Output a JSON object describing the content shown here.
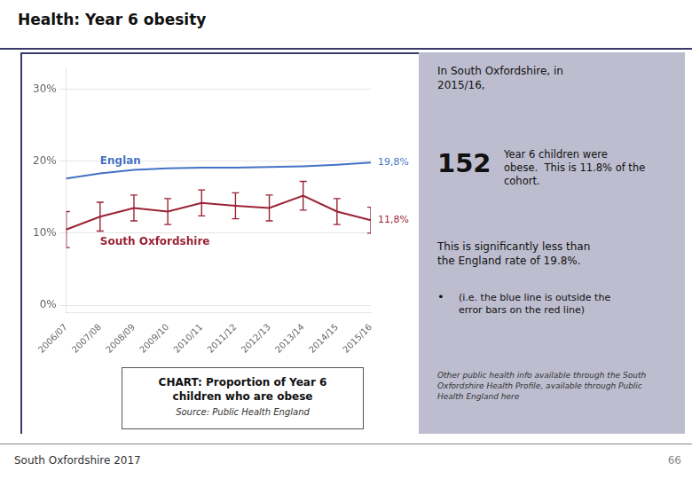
{
  "title": "Health: Year 6 obesity",
  "chart_data": {
    "type": "line",
    "title": "CHART: Proportion of Year 6\nchildren who are obese",
    "source": "Source: Public Health England",
    "categories": [
      "2006/07",
      "2007/08",
      "2008/09",
      "2009/10",
      "2010/11",
      "2011/12",
      "2012/13",
      "2013/14",
      "2014/15",
      "2015/16"
    ],
    "series": [
      {
        "name": "Englan",
        "color": "#4472c4",
        "values": [
          17.6,
          18.3,
          18.8,
          19.0,
          19.1,
          19.1,
          19.2,
          19.3,
          19.5,
          19.8
        ],
        "end_label": "19,8%"
      },
      {
        "name": "South Oxfordshire",
        "color": "#9b2335",
        "values": [
          10.5,
          12.3,
          13.5,
          13.0,
          14.2,
          13.8,
          13.5,
          15.2,
          13.0,
          11.8
        ],
        "errors": [
          2.5,
          2.0,
          1.8,
          1.8,
          1.8,
          1.8,
          1.8,
          2.0,
          1.8,
          1.8
        ],
        "end_label": "11,8%"
      }
    ],
    "ylim": [
      -1,
      33
    ],
    "yticks": [
      {
        "value": 0,
        "label": "0%"
      },
      {
        "value": 10,
        "label": "10%"
      },
      {
        "value": 20,
        "label": "20%"
      },
      {
        "value": 30,
        "label": "30%"
      }
    ],
    "grid": true
  },
  "panel": {
    "text_1": "In South Oxfordshire, in\n2015/16,",
    "number": "152",
    "text_2": "Year 6 children were\nobese.  This is 11.8% of the\ncohort.",
    "text_3": "This is significantly less than\nthe England rate of 19.8%.",
    "bullet": "•",
    "bullet_text": "(i.e. the blue line is outside the\nerror bars on the red line)",
    "note": "Other public health info available through the South\nOxfordshire Health Profile, available through Public\nHealth England here"
  },
  "footer_left": "South Oxfordshire  2017",
  "footer_right": "66"
}
